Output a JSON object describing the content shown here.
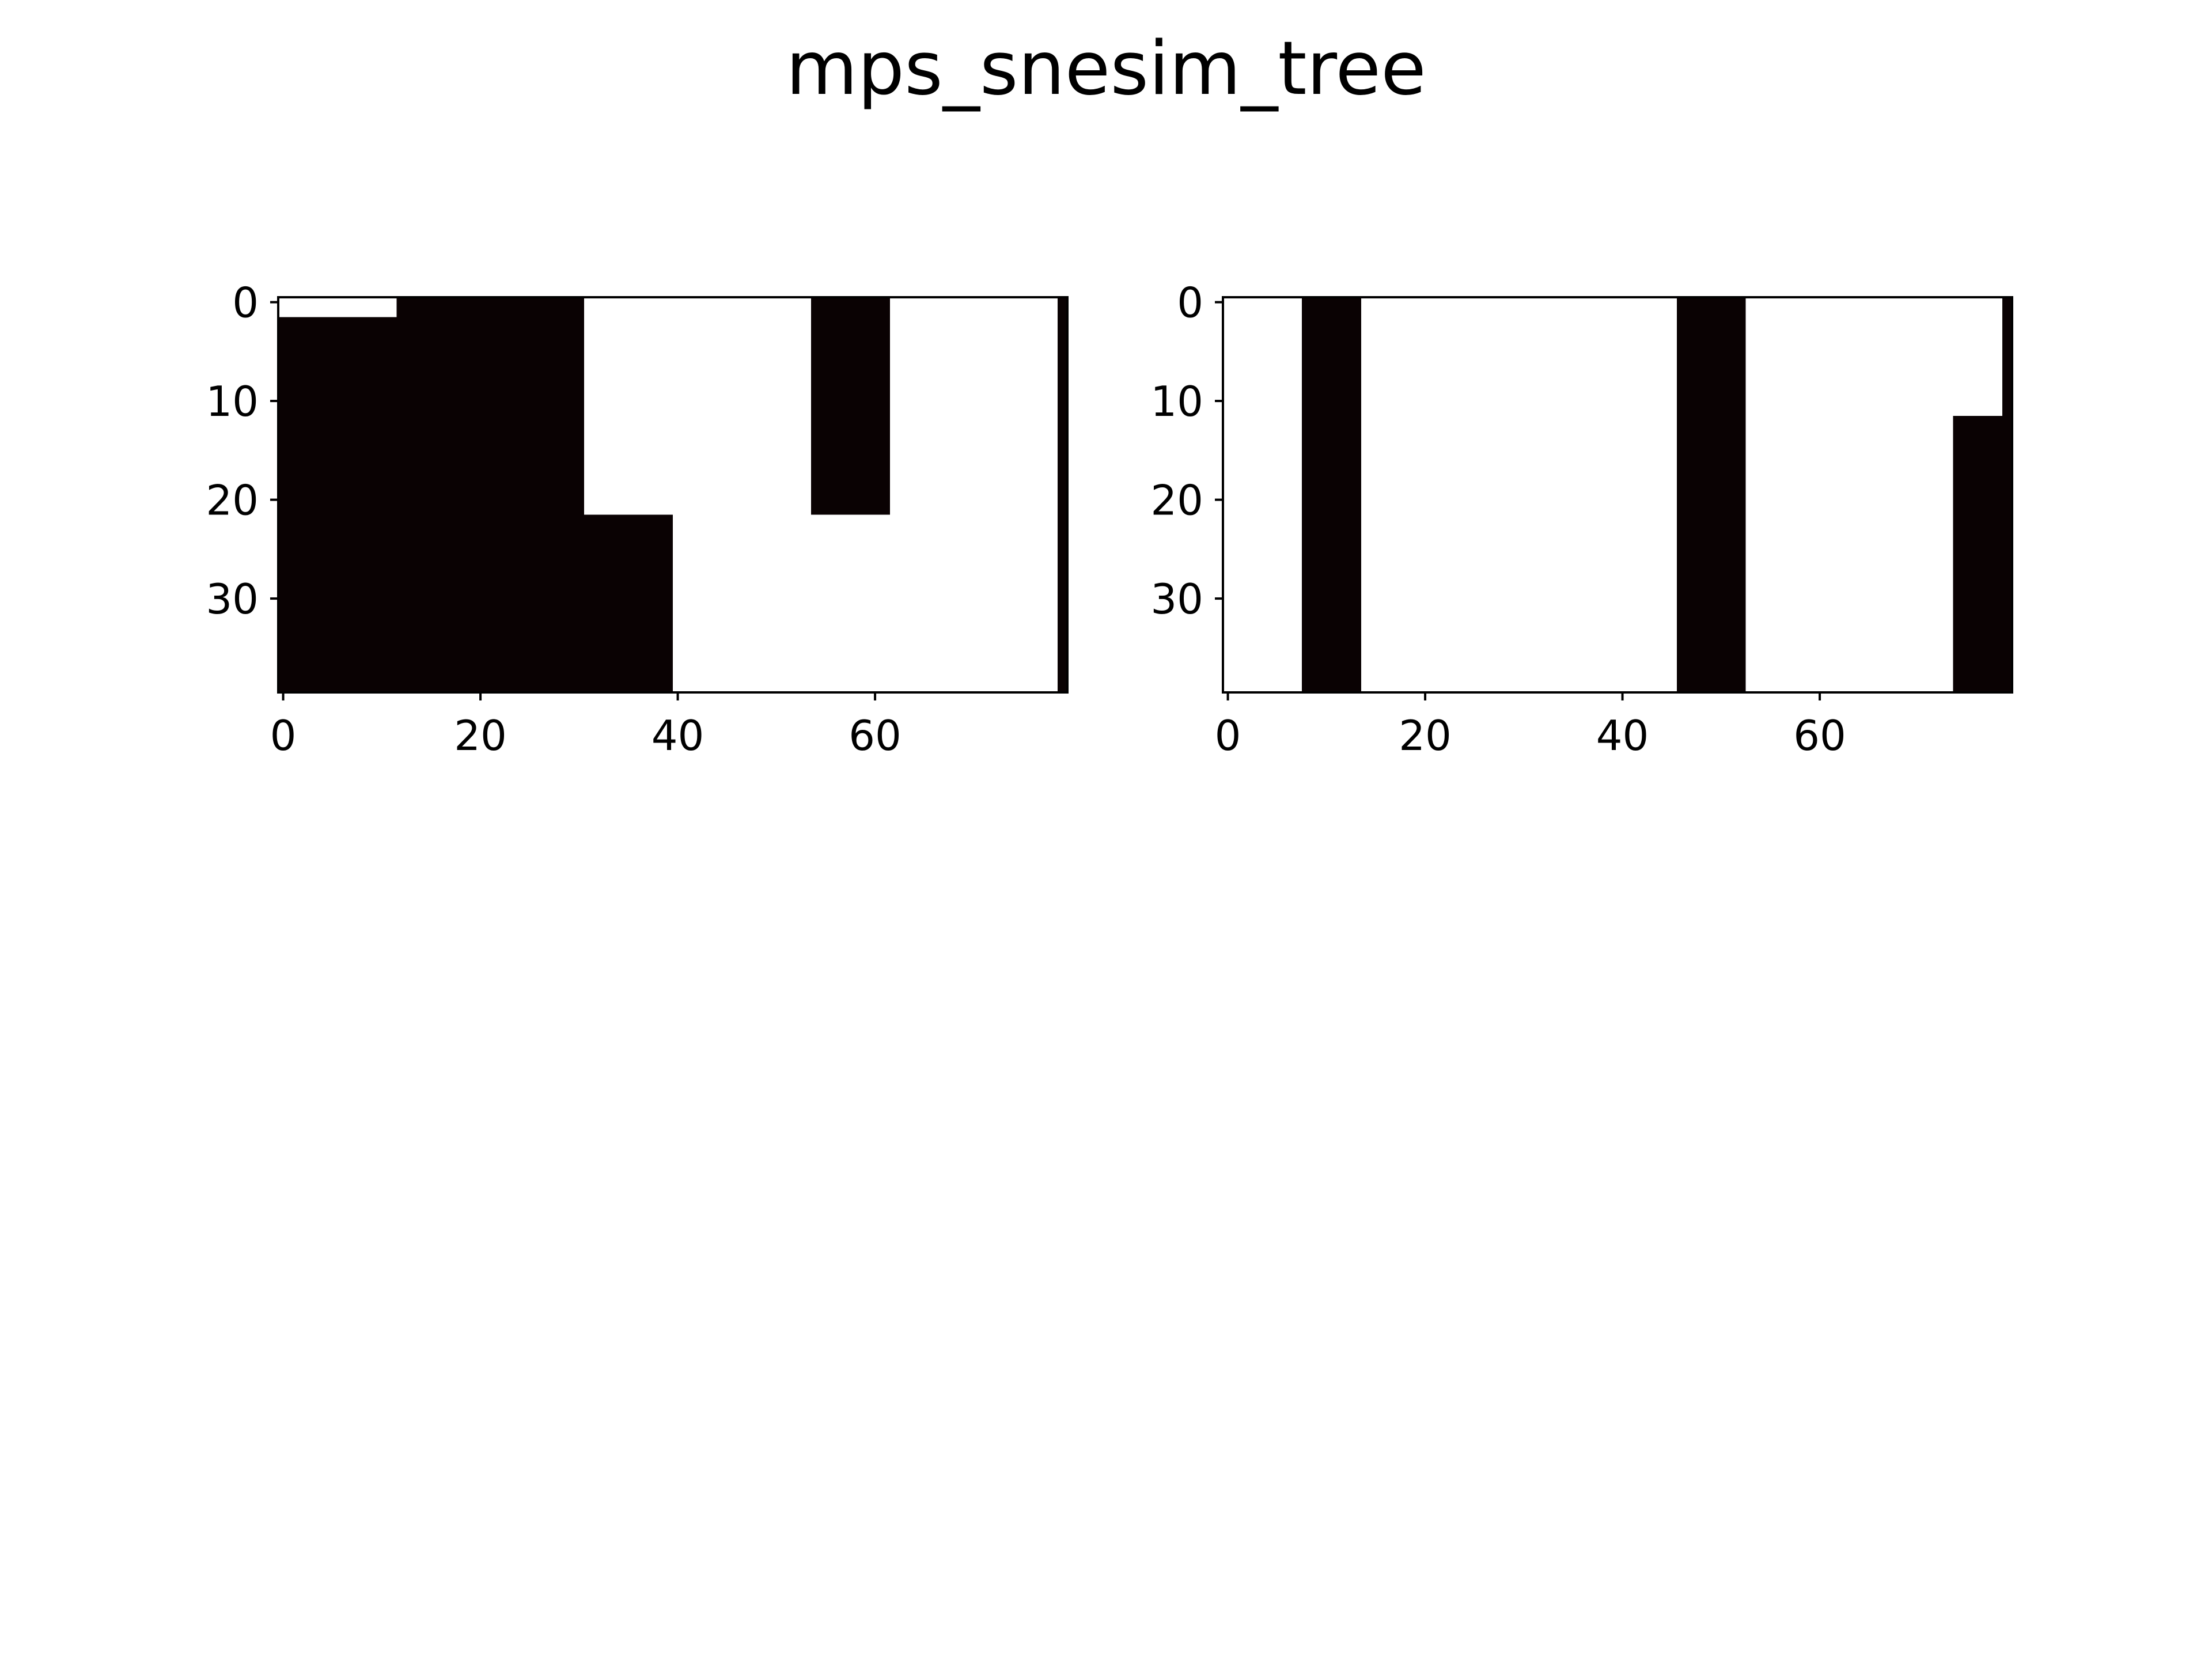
{
  "figure": {
    "title": "mps_snesim_tree"
  },
  "colors": {
    "facies_0": "#0a0203",
    "facies_1": "#ffffff",
    "axes": "#000000"
  },
  "chart_data": [
    {
      "type": "heatmap",
      "title": "",
      "xlabel": "",
      "ylabel": "",
      "grid": false,
      "nx": 80,
      "ny": 40,
      "xlim": [
        -0.5,
        79.5
      ],
      "ylim": [
        39.5,
        -0.5
      ],
      "xticks": [
        0,
        20,
        40,
        60
      ],
      "yticks": [
        0,
        10,
        20,
        30
      ],
      "description_of_values": "binary facies grid; white channel bodies on black background",
      "white_regions": [
        {
          "x_range": [
            0,
            12
          ],
          "y_range": [
            0,
            2
          ]
        },
        {
          "x_range": [
            31,
            54
          ],
          "y_range": [
            0,
            22
          ]
        },
        {
          "x_range": [
            40,
            69
          ],
          "y_range": [
            22,
            40
          ]
        },
        {
          "x_range": [
            62,
            79
          ],
          "y_range": [
            0,
            40
          ]
        }
      ]
    },
    {
      "type": "heatmap",
      "title": "",
      "xlabel": "",
      "ylabel": "",
      "grid": false,
      "nx": 80,
      "ny": 40,
      "xlim": [
        -0.5,
        79.5
      ],
      "ylim": [
        39.5,
        -0.5
      ],
      "xticks": [
        0,
        20,
        40,
        60
      ],
      "yticks": [
        0,
        10,
        20,
        30
      ],
      "description_of_values": "binary facies grid; white channel bodies on black background",
      "white_regions": [
        {
          "x_range": [
            0,
            8
          ],
          "y_range": [
            0,
            40
          ]
        },
        {
          "x_range": [
            14,
            46
          ],
          "y_range": [
            0,
            40
          ]
        },
        {
          "x_range": [
            34,
            42
          ],
          "y_range": [
            24,
            40
          ]
        },
        {
          "x_range": [
            53,
            74
          ],
          "y_range": [
            0,
            40
          ]
        },
        {
          "x_range": [
            72,
            79
          ],
          "y_range": [
            0,
            12
          ]
        }
      ]
    }
  ]
}
